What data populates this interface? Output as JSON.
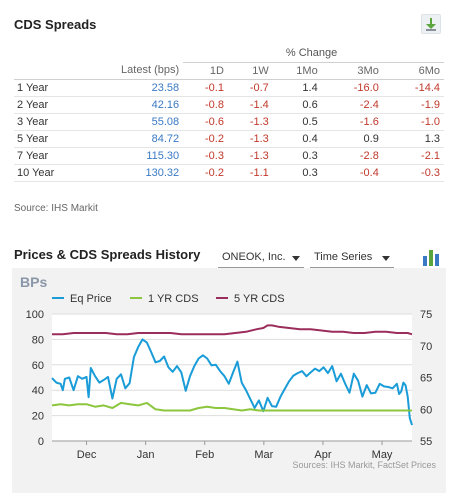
{
  "cds": {
    "title": "CDS Spreads",
    "pct_change_label": "% Change",
    "columns": [
      "Latest (bps)",
      "1D",
      "1W",
      "1Mo",
      "3Mo",
      "6Mo"
    ],
    "rows": [
      {
        "label": "1 Year",
        "latest": "23.58",
        "d1": "-0.1",
        "w1": "-0.7",
        "mo1": "1.4",
        "mo3": "-16.0",
        "mo6": "-14.4"
      },
      {
        "label": "2 Year",
        "latest": "42.16",
        "d1": "-0.8",
        "w1": "-1.4",
        "mo1": "0.6",
        "mo3": "-2.4",
        "mo6": "-1.9"
      },
      {
        "label": "3 Year",
        "latest": "55.08",
        "d1": "-0.6",
        "w1": "-1.3",
        "mo1": "0.5",
        "mo3": "-1.6",
        "mo6": "-1.0"
      },
      {
        "label": "5 Year",
        "latest": "84.72",
        "d1": "-0.2",
        "w1": "-1.3",
        "mo1": "0.4",
        "mo3": "0.9",
        "mo6": "1.3"
      },
      {
        "label": "7 Year",
        "latest": "115.30",
        "d1": "-0.3",
        "w1": "-1.3",
        "mo1": "0.3",
        "mo3": "-2.8",
        "mo6": "-2.1"
      },
      {
        "label": "10 Year",
        "latest": "130.32",
        "d1": "-0.2",
        "w1": "-1.1",
        "mo1": "0.3",
        "mo3": "-0.4",
        "mo6": "-0.3"
      }
    ],
    "source": "Source: IHS Markit"
  },
  "history": {
    "title": "Prices & CDS Spreads History",
    "company_select": "ONEOK, Inc.",
    "view_select": "Time Series"
  },
  "colors": {
    "eq_price": "#1a9cd8",
    "cds_1yr": "#8cc63e",
    "cds_5yr": "#9b2d5c",
    "negative": "#c0392b",
    "latest": "#3a79c4"
  },
  "icons": {
    "download": "download-icon",
    "chart": "bar-chart-icon",
    "caret": "caret-down-icon"
  },
  "chart_data": {
    "type": "line",
    "unit_label": "BPs",
    "x_ticks": [
      "Dec",
      "Jan",
      "Feb",
      "Mar",
      "Apr",
      "May"
    ],
    "y_left_ticks": [
      0,
      20,
      40,
      60,
      80,
      100
    ],
    "y_right_ticks": [
      55,
      60,
      65,
      70,
      75
    ],
    "ylim_left": [
      0,
      100
    ],
    "ylim_right": [
      55,
      75
    ],
    "x_range": [
      0,
      167
    ],
    "grid": true,
    "legend_position": "top",
    "source": "Sources: IHS Markit, FactSet Prices",
    "series": [
      {
        "name": "Eq Price",
        "axis": "right",
        "color": "#1a9cd8",
        "x": [
          0,
          2,
          4,
          5,
          6,
          8,
          10,
          12,
          14,
          16,
          17,
          18,
          20,
          22,
          24,
          26,
          28,
          30,
          32,
          34,
          36,
          38,
          40,
          42,
          44,
          46,
          48,
          50,
          52,
          54,
          56,
          58,
          60,
          62,
          64,
          66,
          68,
          70,
          72,
          74,
          76,
          78,
          80,
          82,
          84,
          86,
          88,
          90,
          92,
          94,
          96,
          98,
          100,
          102,
          104,
          106,
          108,
          110,
          112,
          114,
          116,
          118,
          120,
          122,
          124,
          126,
          128,
          130,
          132,
          134,
          136,
          138,
          140,
          142,
          144,
          146,
          148,
          150,
          152,
          154,
          156,
          158,
          160,
          161,
          162,
          163,
          164,
          165,
          166,
          167
        ],
        "y": [
          64.9,
          64.2,
          64.0,
          63.0,
          64.8,
          65.0,
          63.0,
          65.2,
          64.8,
          65.1,
          61.9,
          66.5,
          65.2,
          64.2,
          64.6,
          65.1,
          61.7,
          64.8,
          65.5,
          63.3,
          64.1,
          68.2,
          69.8,
          71.0,
          70.5,
          69.0,
          67.4,
          67.6,
          68.3,
          66.6,
          65.9,
          66.8,
          65.8,
          62.9,
          65.2,
          66.8,
          68.0,
          68.5,
          68.0,
          66.9,
          67.0,
          66.0,
          65.2,
          64.0,
          65.8,
          67.5,
          64.2,
          63.0,
          61.6,
          60.2,
          61.4,
          59.7,
          61.8,
          60.5,
          60.4,
          62.0,
          63.2,
          64.4,
          65.3,
          65.7,
          66.0,
          65.2,
          65.8,
          66.4,
          66.0,
          66.6,
          65.7,
          66.8,
          64.4,
          65.6,
          64.0,
          62.6,
          65.6,
          64.5,
          62.0,
          63.8,
          62.5,
          62.6,
          64.0,
          63.6,
          63.5,
          63.3,
          64.0,
          62.4,
          62.8,
          64.2,
          63.8,
          62.0,
          58.6,
          57.5
        ]
      },
      {
        "name": "1 YR CDS",
        "axis": "left",
        "color": "#8cc63e",
        "x": [
          0,
          4,
          8,
          12,
          16,
          20,
          24,
          28,
          32,
          36,
          40,
          44,
          48,
          52,
          56,
          60,
          64,
          68,
          72,
          76,
          80,
          84,
          88,
          92,
          96,
          100,
          104,
          108,
          112,
          116,
          120,
          124,
          128,
          132,
          136,
          140,
          144,
          148,
          152,
          156,
          160,
          164,
          167
        ],
        "y": [
          28,
          29,
          28,
          29,
          29,
          27,
          28,
          26,
          30,
          29,
          28,
          30,
          25,
          24,
          24,
          24,
          24,
          26,
          27,
          26,
          26,
          25,
          24,
          25,
          24,
          24,
          24,
          24,
          24,
          24,
          24,
          24,
          24,
          24,
          24,
          24,
          24,
          24,
          24,
          24,
          24,
          24,
          24
        ]
      },
      {
        "name": "5 YR CDS",
        "axis": "left",
        "color": "#9b2d5c",
        "x": [
          0,
          5,
          10,
          15,
          20,
          25,
          30,
          35,
          40,
          45,
          50,
          55,
          60,
          65,
          70,
          75,
          80,
          85,
          90,
          95,
          98,
          100,
          102,
          105,
          110,
          115,
          120,
          125,
          130,
          135,
          140,
          145,
          150,
          155,
          160,
          165,
          167
        ],
        "y": [
          84,
          84,
          85,
          85,
          85,
          85,
          84,
          84,
          85,
          85,
          85,
          85,
          84,
          84,
          84,
          84,
          84,
          85,
          86,
          88,
          89,
          91,
          91,
          90,
          89,
          88,
          88,
          87,
          86,
          86,
          85,
          85,
          86,
          86,
          85,
          85,
          84
        ]
      }
    ]
  }
}
